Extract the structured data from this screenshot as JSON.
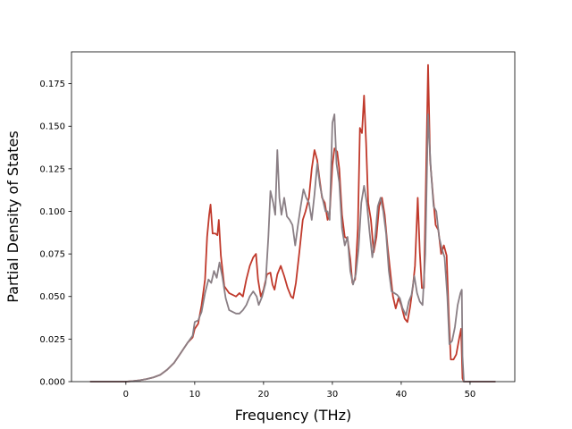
{
  "chart_data": {
    "type": "line",
    "title": "",
    "xlabel": "Frequency (THz)",
    "ylabel": "Partial Density of States",
    "xlim": [
      -7.9,
      56.5
    ],
    "ylim": [
      0,
      0.1937
    ],
    "xticks": [
      0,
      10,
      20,
      30,
      40,
      50
    ],
    "xtick_labels": [
      "0",
      "10",
      "20",
      "30",
      "40",
      "50"
    ],
    "yticks": [
      0,
      0.025,
      0.05,
      0.075,
      0.1,
      0.125,
      0.15,
      0.175
    ],
    "ytick_labels": [
      "0.000",
      "0.025",
      "0.050",
      "0.075",
      "0.100",
      "0.125",
      "0.150",
      "0.175"
    ],
    "grid": false,
    "legend": "none",
    "series": [
      {
        "color": "#c0392b",
        "points": [
          [
            -5.2,
            0
          ],
          [
            0,
            0
          ],
          [
            1,
            0.0003
          ],
          [
            2,
            0.0008
          ],
          [
            3,
            0.0015
          ],
          [
            4,
            0.0025
          ],
          [
            5,
            0.004
          ],
          [
            6,
            0.007
          ],
          [
            7,
            0.011
          ],
          [
            8,
            0.017
          ],
          [
            9,
            0.023
          ],
          [
            9.7,
            0.026
          ],
          [
            10,
            0.031
          ],
          [
            10.5,
            0.034
          ],
          [
            11,
            0.045
          ],
          [
            11.5,
            0.06
          ],
          [
            11.8,
            0.085
          ],
          [
            12.1,
            0.098
          ],
          [
            12.3,
            0.104
          ],
          [
            12.6,
            0.087
          ],
          [
            13.0,
            0.087
          ],
          [
            13.3,
            0.086
          ],
          [
            13.5,
            0.095
          ],
          [
            13.8,
            0.074
          ],
          [
            14.3,
            0.056
          ],
          [
            15,
            0.052
          ],
          [
            16,
            0.05
          ],
          [
            16.5,
            0.052
          ],
          [
            17,
            0.05
          ],
          [
            17.5,
            0.06
          ],
          [
            18.0,
            0.068
          ],
          [
            18.5,
            0.073
          ],
          [
            18.9,
            0.075
          ],
          [
            19.2,
            0.06
          ],
          [
            19.6,
            0.05
          ],
          [
            20,
            0.054
          ],
          [
            20.5,
            0.063
          ],
          [
            21,
            0.064
          ],
          [
            21.3,
            0.057
          ],
          [
            21.6,
            0.054
          ],
          [
            22,
            0.063
          ],
          [
            22.5,
            0.068
          ],
          [
            23,
            0.062
          ],
          [
            23.5,
            0.055
          ],
          [
            24,
            0.05
          ],
          [
            24.3,
            0.049
          ],
          [
            24.7,
            0.058
          ],
          [
            25.2,
            0.076
          ],
          [
            25.7,
            0.095
          ],
          [
            26.1,
            0.1
          ],
          [
            26.6,
            0.108
          ],
          [
            27.0,
            0.125
          ],
          [
            27.4,
            0.136
          ],
          [
            27.8,
            0.13
          ],
          [
            28.1,
            0.12
          ],
          [
            28.5,
            0.108
          ],
          [
            28.9,
            0.105
          ],
          [
            29.3,
            0.095
          ],
          [
            29.6,
            0.098
          ],
          [
            30.0,
            0.127
          ],
          [
            30.3,
            0.137
          ],
          [
            30.7,
            0.135
          ],
          [
            31.0,
            0.125
          ],
          [
            31.4,
            0.098
          ],
          [
            31.8,
            0.085
          ],
          [
            32.2,
            0.084
          ],
          [
            32.6,
            0.072
          ],
          [
            32.9,
            0.058
          ],
          [
            33.3,
            0.06
          ],
          [
            33.7,
            0.09
          ],
          [
            34.0,
            0.149
          ],
          [
            34.3,
            0.146
          ],
          [
            34.6,
            0.168
          ],
          [
            34.9,
            0.14
          ],
          [
            35.2,
            0.105
          ],
          [
            35.6,
            0.095
          ],
          [
            36.0,
            0.076
          ],
          [
            36.4,
            0.085
          ],
          [
            36.8,
            0.103
          ],
          [
            37.2,
            0.108
          ],
          [
            37.6,
            0.098
          ],
          [
            38.0,
            0.08
          ],
          [
            38.4,
            0.065
          ],
          [
            38.8,
            0.05
          ],
          [
            39.2,
            0.043
          ],
          [
            39.6,
            0.049
          ],
          [
            40.0,
            0.045
          ],
          [
            40.5,
            0.037
          ],
          [
            40.9,
            0.035
          ],
          [
            41.3,
            0.044
          ],
          [
            41.7,
            0.056
          ],
          [
            42.0,
            0.068
          ],
          [
            42.4,
            0.108
          ],
          [
            42.7,
            0.076
          ],
          [
            43.0,
            0.055
          ],
          [
            43.3,
            0.055
          ],
          [
            43.6,
            0.12
          ],
          [
            43.9,
            0.186
          ],
          [
            44.2,
            0.13
          ],
          [
            44.6,
            0.11
          ],
          [
            45.0,
            0.092
          ],
          [
            45.4,
            0.089
          ],
          [
            45.8,
            0.075
          ],
          [
            46.2,
            0.08
          ],
          [
            46.6,
            0.074
          ],
          [
            46.9,
            0.04
          ],
          [
            47.2,
            0.013
          ],
          [
            47.6,
            0.013
          ],
          [
            48.0,
            0.016
          ],
          [
            48.4,
            0.025
          ],
          [
            48.7,
            0.031
          ],
          [
            48.9,
            0.002
          ],
          [
            49.1,
            0
          ],
          [
            53.7,
            0
          ]
        ]
      },
      {
        "color": "#8a7f85",
        "points": [
          [
            -5.2,
            0
          ],
          [
            0,
            0
          ],
          [
            1,
            0.0003
          ],
          [
            2,
            0.0008
          ],
          [
            3,
            0.0015
          ],
          [
            4,
            0.0025
          ],
          [
            5,
            0.004
          ],
          [
            6,
            0.007
          ],
          [
            7,
            0.011
          ],
          [
            8,
            0.017
          ],
          [
            9,
            0.023
          ],
          [
            9.7,
            0.027
          ],
          [
            10,
            0.035
          ],
          [
            10.5,
            0.036
          ],
          [
            11,
            0.041
          ],
          [
            11.5,
            0.052
          ],
          [
            12.0,
            0.06
          ],
          [
            12.4,
            0.058
          ],
          [
            12.8,
            0.065
          ],
          [
            13.2,
            0.061
          ],
          [
            13.6,
            0.07
          ],
          [
            14.0,
            0.062
          ],
          [
            14.5,
            0.049
          ],
          [
            15,
            0.042
          ],
          [
            15.5,
            0.041
          ],
          [
            16,
            0.04
          ],
          [
            16.5,
            0.04
          ],
          [
            17,
            0.042
          ],
          [
            17.5,
            0.045
          ],
          [
            18.0,
            0.05
          ],
          [
            18.5,
            0.053
          ],
          [
            19.0,
            0.05
          ],
          [
            19.3,
            0.045
          ],
          [
            19.8,
            0.05
          ],
          [
            20.3,
            0.058
          ],
          [
            20.7,
            0.085
          ],
          [
            21.0,
            0.112
          ],
          [
            21.4,
            0.105
          ],
          [
            21.7,
            0.098
          ],
          [
            22.0,
            0.136
          ],
          [
            22.3,
            0.108
          ],
          [
            22.6,
            0.098
          ],
          [
            23.0,
            0.108
          ],
          [
            23.4,
            0.097
          ],
          [
            23.8,
            0.095
          ],
          [
            24.2,
            0.092
          ],
          [
            24.6,
            0.08
          ],
          [
            25.0,
            0.092
          ],
          [
            25.4,
            0.103
          ],
          [
            25.8,
            0.113
          ],
          [
            26.2,
            0.108
          ],
          [
            26.6,
            0.105
          ],
          [
            27.0,
            0.095
          ],
          [
            27.4,
            0.11
          ],
          [
            27.8,
            0.128
          ],
          [
            28.2,
            0.115
          ],
          [
            28.6,
            0.107
          ],
          [
            29.0,
            0.1
          ],
          [
            29.3,
            0.1
          ],
          [
            29.6,
            0.095
          ],
          [
            30.0,
            0.152
          ],
          [
            30.3,
            0.157
          ],
          [
            30.6,
            0.128
          ],
          [
            31.0,
            0.117
          ],
          [
            31.4,
            0.09
          ],
          [
            31.8,
            0.08
          ],
          [
            32.2,
            0.085
          ],
          [
            32.6,
            0.065
          ],
          [
            33.0,
            0.057
          ],
          [
            33.4,
            0.063
          ],
          [
            33.8,
            0.078
          ],
          [
            34.2,
            0.105
          ],
          [
            34.6,
            0.115
          ],
          [
            35.0,
            0.105
          ],
          [
            35.4,
            0.088
          ],
          [
            35.8,
            0.073
          ],
          [
            36.2,
            0.084
          ],
          [
            36.6,
            0.103
          ],
          [
            37.0,
            0.108
          ],
          [
            37.4,
            0.1
          ],
          [
            37.8,
            0.087
          ],
          [
            38.2,
            0.065
          ],
          [
            38.6,
            0.053
          ],
          [
            39.0,
            0.052
          ],
          [
            39.4,
            0.051
          ],
          [
            39.8,
            0.049
          ],
          [
            40.2,
            0.043
          ],
          [
            40.7,
            0.039
          ],
          [
            41.1,
            0.047
          ],
          [
            41.5,
            0.051
          ],
          [
            41.9,
            0.062
          ],
          [
            42.3,
            0.052
          ],
          [
            42.7,
            0.047
          ],
          [
            43.1,
            0.045
          ],
          [
            43.5,
            0.075
          ],
          [
            43.9,
            0.157
          ],
          [
            44.3,
            0.125
          ],
          [
            44.7,
            0.103
          ],
          [
            45.1,
            0.1
          ],
          [
            45.5,
            0.085
          ],
          [
            45.9,
            0.078
          ],
          [
            46.3,
            0.073
          ],
          [
            46.7,
            0.05
          ],
          [
            47.0,
            0.022
          ],
          [
            47.4,
            0.024
          ],
          [
            47.8,
            0.032
          ],
          [
            48.2,
            0.045
          ],
          [
            48.6,
            0.052
          ],
          [
            48.8,
            0.054
          ],
          [
            48.9,
            0.015
          ],
          [
            49.1,
            0
          ],
          [
            53.7,
            0
          ]
        ]
      }
    ]
  }
}
